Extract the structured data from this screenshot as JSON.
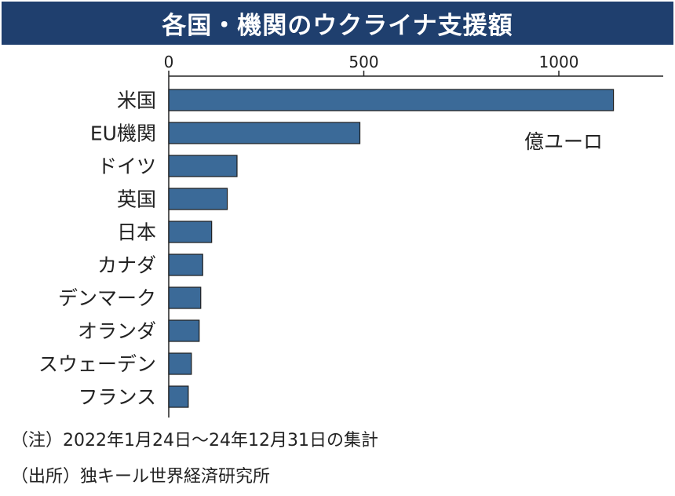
{
  "chart_data": {
    "type": "bar",
    "orientation": "horizontal",
    "title": "各国・機関のウクライナ支援額",
    "unit": "億ユーロ",
    "xlim": [
      0,
      1270
    ],
    "xticks": [
      0,
      500,
      1000
    ],
    "categories": [
      "米国",
      "EU機関",
      "ドイツ",
      "英国",
      "日本",
      "カナダ",
      "デンマーク",
      "オランダ",
      "スウェーデン",
      "フランス"
    ],
    "values": [
      1140,
      490,
      175,
      150,
      110,
      87,
      82,
      78,
      58,
      50
    ],
    "bar_color": "#3b6a98"
  },
  "notes": {
    "note1": "（注）2022年1月24日～24年12月31日の集計",
    "note2": "（出所）独キール世界経済研究所"
  }
}
